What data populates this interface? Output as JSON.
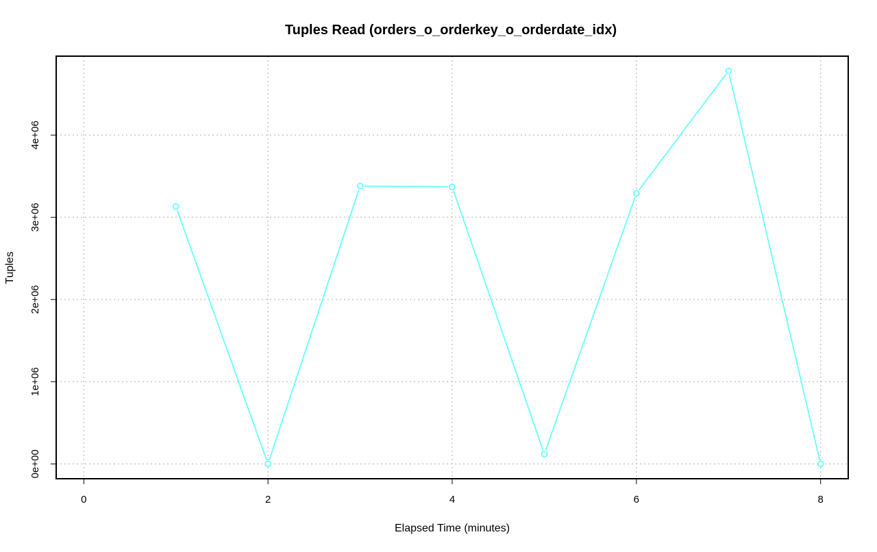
{
  "chart_data": {
    "type": "line",
    "title": "Tuples Read (orders_o_orderkey_o_orderdate_idx)",
    "xlabel": "Elapsed Time (minutes)",
    "ylabel": "Tuples",
    "xlim": [
      -0.3,
      8.3
    ],
    "ylim": [
      -180000,
      4960000
    ],
    "x_ticks": [
      0,
      2,
      4,
      6,
      8
    ],
    "x_tick_labels": [
      "0",
      "2",
      "4",
      "6",
      "8"
    ],
    "y_ticks": [
      0,
      1000000,
      2000000,
      3000000,
      4000000
    ],
    "y_tick_labels": [
      "0e+00",
      "1e+06",
      "2e+06",
      "3e+06",
      "4e+06"
    ],
    "grid": true,
    "legend": "none",
    "series": [
      {
        "color": "#66ffff",
        "marker": "open-circle",
        "x": [
          1,
          2,
          3,
          4,
          5,
          6,
          7,
          8
        ],
        "y": [
          3130000,
          0,
          3380000,
          3370000,
          120000,
          3290000,
          4780000,
          0
        ]
      }
    ]
  }
}
